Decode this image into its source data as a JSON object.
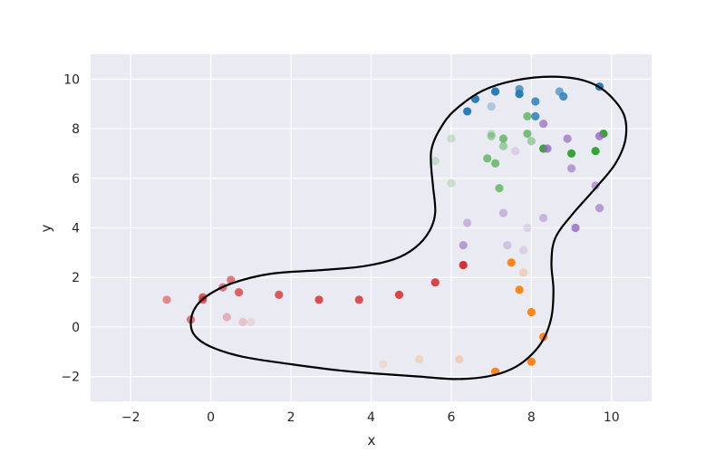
{
  "chart_data": {
    "type": "scatter",
    "title": "",
    "xlabel": "x",
    "ylabel": "y",
    "xlim": [
      -3,
      11
    ],
    "ylim": [
      -3,
      11
    ],
    "xticks": [
      -2,
      0,
      2,
      4,
      6,
      8,
      10
    ],
    "yticks": [
      -2,
      0,
      2,
      4,
      6,
      8,
      10
    ],
    "xtick_labels": [
      "−2",
      "0",
      "2",
      "4",
      "6",
      "8",
      "10"
    ],
    "ytick_labels": [
      "−2",
      "0",
      "2",
      "4",
      "6",
      "8",
      "10"
    ],
    "grid": true,
    "style": {
      "background": "#eaeaf2",
      "grid_color": "#ffffff",
      "boundary_color": "#000000"
    },
    "series": [
      {
        "color": "#1f77b4",
        "x": [
          6.6,
          7.1,
          7.7,
          8.7,
          9.7,
          6.4,
          7.7,
          8.1,
          8.1,
          8.8,
          7.0
        ],
        "y": [
          9.2,
          9.5,
          9.6,
          9.5,
          9.7,
          8.7,
          9.4,
          9.1,
          8.5,
          9.3,
          8.9
        ],
        "alpha": [
          0.95,
          0.95,
          0.7,
          0.6,
          0.95,
          0.95,
          0.95,
          0.8,
          0.8,
          0.8,
          0.3
        ]
      },
      {
        "color": "#2ca02c",
        "x": [
          7.9,
          7.3,
          8.0,
          7.9,
          9.8,
          8.3,
          9.0,
          9.6,
          6.0,
          7.0,
          7.0,
          7.3,
          6.9,
          7.1,
          5.6,
          6.0,
          7.2
        ],
        "y": [
          8.5,
          7.6,
          7.5,
          7.8,
          7.8,
          7.2,
          7.0,
          7.1,
          7.6,
          7.8,
          7.7,
          7.3,
          6.8,
          6.6,
          6.7,
          5.8,
          5.6
        ],
        "alpha": [
          0.6,
          0.6,
          0.4,
          0.6,
          0.95,
          0.95,
          0.95,
          0.95,
          0.2,
          0.2,
          0.4,
          0.4,
          0.6,
          0.6,
          0.2,
          0.2,
          0.6
        ]
      },
      {
        "color": "#9467bd",
        "x": [
          8.3,
          8.9,
          9.7,
          8.4,
          9.0,
          9.6,
          6.4,
          7.3,
          8.3,
          9.7,
          9.1,
          6.3,
          7.4,
          7.6,
          7.9,
          7.8
        ],
        "y": [
          8.2,
          7.6,
          7.7,
          7.2,
          6.4,
          5.7,
          4.2,
          4.6,
          4.4,
          4.8,
          4.0,
          3.3,
          3.3,
          7.1,
          4.0,
          3.1
        ],
        "alpha": [
          0.7,
          0.7,
          0.8,
          0.8,
          0.6,
          0.6,
          0.4,
          0.4,
          0.4,
          0.6,
          0.8,
          0.6,
          0.3,
          0.2,
          0.2,
          0.2
        ]
      },
      {
        "color": "#ff7f0e",
        "x": [
          7.5,
          7.8,
          7.7,
          8.0,
          8.3,
          8.0,
          7.1,
          6.2,
          5.2,
          4.3,
          7.8
        ],
        "y": [
          2.6,
          2.2,
          1.5,
          0.6,
          -0.4,
          -1.4,
          -1.8,
          -1.3,
          -1.3,
          -1.5,
          2.2
        ],
        "alpha": [
          0.95,
          0.15,
          0.95,
          0.95,
          0.95,
          0.95,
          0.95,
          0.25,
          0.2,
          0.15,
          0.1
        ]
      },
      {
        "color": "#d62728",
        "x": [
          6.3,
          5.6,
          4.7,
          3.7,
          2.7,
          1.7,
          0.7,
          0.5,
          0.3,
          -0.2,
          -0.2,
          -1.1,
          -0.5,
          0.4,
          0.8,
          1.0
        ],
        "y": [
          2.5,
          1.8,
          1.3,
          1.1,
          1.1,
          1.3,
          1.4,
          1.9,
          1.6,
          1.2,
          1.1,
          1.1,
          0.3,
          0.4,
          0.2,
          0.2
        ],
        "alpha": [
          0.95,
          0.85,
          0.85,
          0.8,
          0.8,
          0.75,
          0.7,
          0.6,
          0.6,
          0.7,
          0.7,
          0.5,
          0.6,
          0.3,
          0.2,
          0.1
        ]
      }
    ],
    "boundary_curve": {
      "x": [
        5.55,
        5.5,
        5.8,
        6.2,
        6.8,
        7.6,
        8.5,
        9.3,
        9.85,
        10.3,
        10.35,
        10.1,
        9.6,
        9.05,
        8.6,
        8.5,
        8.55,
        8.5,
        8.3,
        7.95,
        7.5,
        6.9,
        6.1,
        5.2,
        4.3,
        3.2,
        2.0,
        0.8,
        0.0,
        -0.4,
        -0.5,
        -0.4,
        -0.1,
        0.5,
        1.5,
        2.8,
        3.8,
        4.6,
        5.1,
        5.45,
        5.6,
        5.55
      ],
      "y": [
        5.6,
        7.1,
        8.2,
        8.9,
        9.55,
        9.95,
        10.1,
        9.95,
        9.5,
        8.6,
        7.6,
        6.6,
        5.6,
        4.6,
        3.6,
        2.6,
        1.5,
        0.4,
        -0.5,
        -1.2,
        -1.7,
        -2.0,
        -2.1,
        -2.0,
        -1.9,
        -1.75,
        -1.5,
        -1.2,
        -0.8,
        -0.35,
        0.15,
        0.75,
        1.25,
        1.75,
        2.15,
        2.3,
        2.45,
        2.75,
        3.2,
        3.85,
        4.6,
        5.6
      ]
    }
  }
}
